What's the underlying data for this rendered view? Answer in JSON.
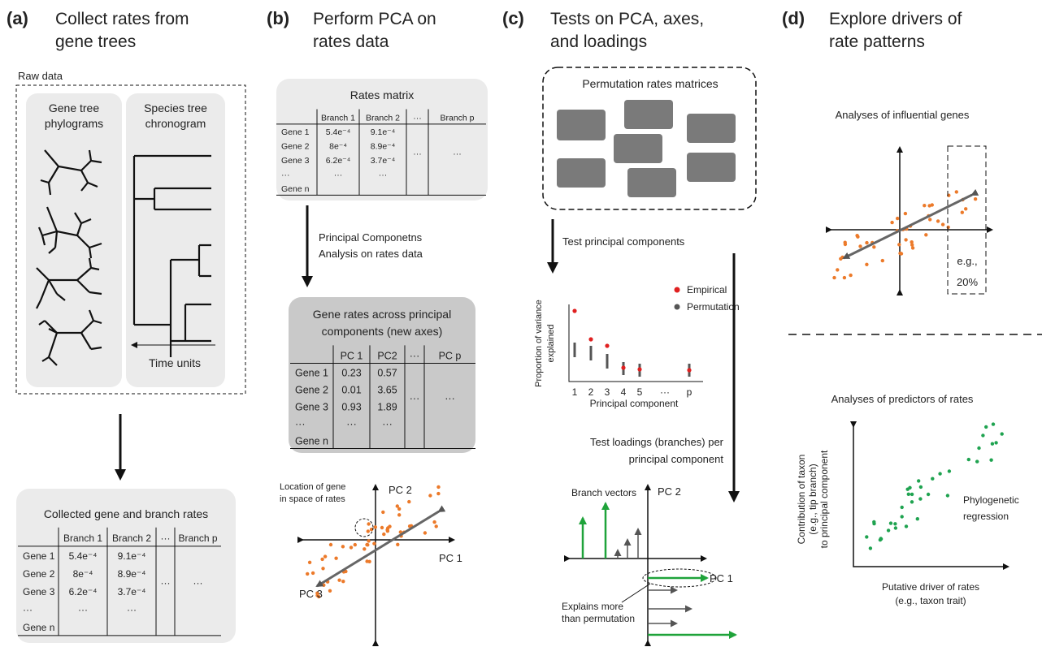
{
  "panels": [
    {
      "label": "(a)",
      "title": [
        "Collect rates from",
        "gene trees"
      ]
    },
    {
      "label": "(b)",
      "title": [
        "Perform PCA on",
        "rates data"
      ]
    },
    {
      "label": "(c)",
      "title": [
        "Tests on PCA, axes,",
        "and loadings"
      ]
    },
    {
      "label": "(d)",
      "title": [
        "Explore drivers of",
        "rate patterns"
      ]
    }
  ],
  "panel_a": {
    "raw_data_label": "Raw data",
    "gene_tree_box": [
      "Gene tree",
      "phylograms"
    ],
    "species_tree_box": [
      "Species tree",
      "chronogram"
    ],
    "time_units": "Time units",
    "collected_title": "Collected gene and branch rates",
    "table": {
      "header": [
        "Branch 1",
        "Branch 2",
        "···",
        "Branch p"
      ],
      "rows": [
        [
          "Gene 1",
          "5.4e⁻⁴",
          "9.1e⁻⁴"
        ],
        [
          "Gene 2",
          "8e⁻⁴",
          "8.9e⁻⁴"
        ],
        [
          "Gene 3",
          "6.2e⁻⁴",
          "3.7e⁻⁴",
          "···",
          "···"
        ],
        [
          "···",
          "···",
          "···"
        ],
        [
          "Gene n"
        ]
      ]
    }
  },
  "panel_b": {
    "matrix_title": "Rates matrix",
    "table": {
      "header": [
        "Branch 1",
        "Branch 2",
        "···",
        "Branch p"
      ],
      "rows": [
        [
          "Gene 1",
          "5.4e⁻⁴",
          "9.1e⁻⁴"
        ],
        [
          "Gene 2",
          "8e⁻⁴",
          "8.9e⁻⁴"
        ],
        [
          "Gene 3",
          "6.2e⁻⁴",
          "3.7e⁻⁴",
          "···",
          "···"
        ],
        [
          "···",
          "···",
          "···"
        ],
        [
          "Gene n"
        ]
      ]
    },
    "arrow_label": [
      "Principal Componetns",
      "Analysis on rates data"
    ],
    "pc_title": [
      "Gene rates across principal",
      "components (new axes)"
    ],
    "pc_table": {
      "header": [
        "PC 1",
        "PC2",
        "···",
        "PC p"
      ],
      "rows": [
        [
          "Gene 1",
          "0.23",
          "0.57"
        ],
        [
          "Gene 2",
          "0.01",
          "3.65"
        ],
        [
          "Gene 3",
          "0.93",
          "1.89",
          "···",
          "···"
        ],
        [
          "···",
          "···",
          "···"
        ],
        [
          "Gene n"
        ]
      ]
    },
    "annotation": [
      "Location of gene",
      "in space of rates"
    ],
    "axis_pc2": "PC 2",
    "axis_pc1": "PC 1",
    "axis_pc3": "PC 3"
  },
  "panel_c": {
    "perm_title": "Permutation rates matrices",
    "test_pc": "Test principal components",
    "legend": [
      "Empirical",
      "Permutation"
    ],
    "y_label": [
      "Proportion of variance",
      "explained"
    ],
    "x_ticks": [
      "1",
      "2",
      "3",
      "4",
      "5",
      "···",
      "p"
    ],
    "x_label": "Principal component",
    "test_loadings": [
      "Test loadings (branches) per",
      "principal component"
    ],
    "branch_vectors": "Branch vectors",
    "axis_pc2": "PC 2",
    "axis_pc1": "PC 1",
    "explains": [
      "Explains more",
      "than permutation"
    ]
  },
  "panel_d": {
    "influential_title": "Analyses of influential genes",
    "box_label": [
      "e.g.,",
      "20%"
    ],
    "predictors_title": "Analyses of predictors of rates",
    "y_label": [
      "Contribution of taxon",
      "(e.g., tip branch)",
      "to principal component"
    ],
    "x_label": [
      "Putative driver of rates",
      "(e.g., taxon trait)"
    ],
    "regression_label": [
      "Phylogenetic",
      "regression"
    ]
  }
}
